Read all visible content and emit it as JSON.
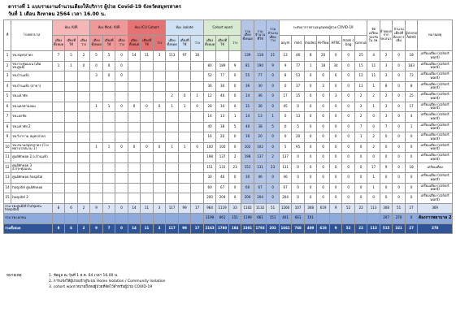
{
  "header": {
    "title": "ตารางที่ 1 แบบรายงานจำนวนเตียงให้บริการ ผู้ป่วย Covid-19 จังหวัดสมุทรสาคร",
    "date": "วันที่ 1 เดือน สิงหาคม 2564 เวลา 16.00 น."
  },
  "table": {
    "groups": [
      {
        "label": "ที่",
        "color": "#ffffff"
      },
      {
        "label": "โรงพยาบาล",
        "color": "#ffffff"
      },
      {
        "label": "ห้อง AIIR",
        "color": "#f4b6b6",
        "subs": [
          "เตียงทั้งหมด",
          "เตียงที่ใช้",
          "เตียงว่าง"
        ]
      },
      {
        "label": "ห้อง Mod. AIIR",
        "color": "#ef9a9a",
        "subs": [
          "เตียงทั้งหมด",
          "เตียงที่ใช้",
          "เตียงว่าง"
        ]
      },
      {
        "label": "ห้อง ICU Cohort",
        "color": "#e57373",
        "subs": [
          "เตียงทั้งหมด",
          "เตียงที่ใช้",
          "ว่าง"
        ]
      },
      {
        "label": "ห้อง isolate",
        "color": "#cfe2f3",
        "subs": [
          "เตียงทั้งหมด",
          "เตียงที่ใช้",
          "ว่าง"
        ]
      },
      {
        "label": "Cohort ward",
        "color": "#d9ead3",
        "subs": [
          "เตียงทั้งหมด",
          "เตียงที่ใช้",
          "ว่าง"
        ]
      },
      {
        "label": "รวมเตียงทั้งหมด",
        "color": "#b4c6e7"
      },
      {
        "label": "รวมจำนวนที่ใช้",
        "color": "#b4c6e7"
      },
      {
        "label": "รวมจำนวนเตียงว่าง",
        "color": "#b4c6e7"
      },
      {
        "label": "ระดับอาการตามอนุสมทบผู้ป่วย COVID-19",
        "color": "#ffffff",
        "subs": [
          "asym",
          "mild",
          "moderate",
          "Hi-flow",
          "HFNC",
          "mask c bag",
          "cannula"
        ]
      },
      {
        "label": "จัดเตรียมรองรับใน รพ.",
        "color": "#ffffff"
      },
      {
        "label": "ย้ายออกจาก รพ.สนาม",
        "color": "#ffffff"
      },
      {
        "label": "จำนวนเตียงที่ต้องการเพิ่ม",
        "color": "#ffffff"
      },
      {
        "label": "ผู้ป่วยรอ Admit",
        "color": "#ffffff"
      },
      {
        "label": "หมายเหตุ",
        "color": "#ffffff"
      }
    ],
    "rows": [
      {
        "no": 1,
        "name": "รพ.สมุทรสาคร",
        "cells": [
          7,
          5,
          2,
          5,
          5,
          0,
          14,
          11,
          3,
          113,
          97,
          16,
          null,
          null,
          null,
          139,
          118,
          21,
          13,
          46,
          8,
          20,
          0,
          0,
          25,
          4,
          2,
          0,
          18
        ],
        "note": "เตรียมเตียง (cohort ward)"
      },
      {
        "no": 2,
        "name": "รพ.กระทุ่มแบน (เดิม รพ.ศูนย์)",
        "cells": [
          1,
          1,
          0,
          0,
          0,
          0,
          null,
          null,
          null,
          null,
          null,
          null,
          80,
          189,
          9,
          81,
          190,
          9,
          9,
          77,
          1,
          18,
          34,
          0,
          15,
          11,
          3,
          0,
          183
        ],
        "note": "เตรียมเตียง (cohort ward)"
      },
      {
        "no": 3,
        "name": "รพ.บ้านแพ้ว",
        "cells": [
          null,
          null,
          null,
          3,
          0,
          0,
          null,
          null,
          null,
          null,
          null,
          null,
          52,
          77,
          0,
          55,
          77,
          0,
          8,
          53,
          0,
          0,
          6,
          0,
          12,
          11,
          3,
          0,
          73
        ],
        "note": "เตรียมเตียง (cohort ward)"
      },
      {
        "no": 4,
        "name": "รพ.บ้านแพ้ว (สาขา)",
        "cells": [
          null,
          null,
          null,
          null,
          null,
          null,
          null,
          null,
          null,
          null,
          null,
          null,
          36,
          30,
          0,
          36,
          30,
          0,
          0,
          37,
          0,
          2,
          0,
          0,
          11,
          1,
          8,
          0,
          8
        ],
        "note": "เตรียมเตียง (cohort ward)"
      },
      {
        "no": 5,
        "name": "รพ.มหาชัย",
        "cells": [
          null,
          null,
          null,
          null,
          null,
          null,
          null,
          null,
          null,
          2,
          0,
          1,
          12,
          46,
          0,
          14,
          46,
          0,
          17,
          15,
          0,
          0,
          3,
          0,
          2,
          2,
          2,
          0,
          25
        ],
        "note": "เตรียมเตียง (cohort ward)"
      },
      {
        "no": 6,
        "name": "รพ.นครท่าฉลอม",
        "cells": [
          null,
          null,
          null,
          1,
          1,
          0,
          0,
          0,
          0,
          1,
          1,
          0,
          28,
          34,
          0,
          31,
          36,
          0,
          45,
          0,
          0,
          0,
          0,
          0,
          2,
          1,
          3,
          0,
          17
        ],
        "note": "เตรียมเตียง (cohort ward)"
      },
      {
        "no": 7,
        "name": "รพ.เอกชัย",
        "cells": [
          null,
          null,
          null,
          null,
          null,
          null,
          null,
          null,
          null,
          null,
          null,
          null,
          14,
          13,
          1,
          14,
          13,
          1,
          0,
          13,
          0,
          0,
          0,
          0,
          2,
          0,
          3,
          0,
          4
        ],
        "note": "เตรียมเตียง (cohort ward)"
      },
      {
        "no": 8,
        "name": "รพ.มหาชัย 2",
        "cells": [
          null,
          null,
          null,
          null,
          null,
          null,
          null,
          null,
          null,
          null,
          null,
          null,
          40,
          38,
          5,
          40,
          38,
          5,
          0,
          5,
          0,
          0,
          0,
          0,
          7,
          0,
          7,
          0,
          1
        ],
        "note": "เตรียมเตียง (cohort ward)"
      },
      {
        "no": 9,
        "name": "รพ.วิภาราม สมุทรสาคร",
        "cells": [
          null,
          null,
          null,
          null,
          null,
          null,
          null,
          null,
          null,
          null,
          null,
          null,
          16,
          20,
          0,
          16,
          20,
          0,
          0,
          20,
          0,
          0,
          0,
          0,
          1,
          2,
          0,
          0,
          0
        ],
        "note": "เตรียมเตียง (cohort ward)"
      },
      {
        "no": 10,
        "name": "รพ.สนามสมุทรสาคร (โรงพยาบาลสนาม 1)",
        "cells": [
          null,
          null,
          null,
          1,
          1,
          0,
          0,
          0,
          0,
          1,
          1,
          0,
          100,
          100,
          0,
          102,
          102,
          0,
          5,
          95,
          0,
          0,
          0,
          0,
          0,
          2,
          0,
          0,
          0
        ],
        "note": "เตรียมเตียง (cohort ward)"
      },
      {
        "no": 11,
        "name": "ศูนย์พักคอย 2 อ.บ้านแพ้ว",
        "cells": [
          null,
          null,
          null,
          null,
          null,
          null,
          null,
          null,
          null,
          null,
          null,
          null,
          198,
          137,
          2,
          198,
          137,
          2,
          137,
          0,
          0,
          0,
          0,
          0,
          0,
          0,
          0,
          0,
          0
        ],
        "note": "เตรียมเตียง (cohort ward)"
      },
      {
        "no": 12,
        "name": "ศูนย์พักคอย 3 อ.กระทุ่มแบน",
        "cells": [
          null,
          null,
          null,
          null,
          null,
          null,
          null,
          null,
          null,
          null,
          null,
          null,
          151,
          131,
          23,
          151,
          131,
          23,
          131,
          0,
          0,
          0,
          0,
          0,
          0,
          17,
          9,
          0,
          18
        ],
        "note": "เตรียมเตียง"
      },
      {
        "no": 13,
        "name": "ศูนย์พักคอย hospital",
        "cells": [
          null,
          null,
          null,
          null,
          null,
          null,
          null,
          null,
          null,
          null,
          null,
          null,
          30,
          46,
          0,
          30,
          46,
          0,
          46,
          0,
          0,
          0,
          0,
          0,
          0,
          1,
          0,
          0,
          0
        ],
        "note": "เตรียมเตียง (cohort ward)"
      },
      {
        "no": 14,
        "name": "hospitel ศูนย์พักคอย",
        "cells": [
          null,
          null,
          null,
          null,
          null,
          null,
          null,
          null,
          null,
          null,
          null,
          null,
          60,
          67,
          0,
          60,
          67,
          0,
          67,
          0,
          0,
          0,
          0,
          0,
          0,
          1,
          0,
          0,
          0
        ],
        "note": "เตรียมเตียง (cohort ward)"
      },
      {
        "no": 15,
        "name": "hospitel 2",
        "cells": [
          null,
          null,
          null,
          null,
          null,
          null,
          null,
          null,
          null,
          null,
          null,
          null,
          200,
          204,
          0,
          200,
          204,
          0,
          204,
          0,
          0,
          0,
          0,
          0,
          0,
          0,
          0,
          0,
          0
        ],
        "note": "เตรียมเตียง (cohort ward)"
      }
    ],
    "totals": [
      {
        "name": "รวม รพ.ศูนย์/ทั่วไป/ชุมชน hospital)",
        "cells": [
          8,
          6,
          2,
          9,
          7,
          0,
          14,
          11,
          3,
          117,
          99,
          17,
          964,
          1119,
          33,
          1102,
          1132,
          51,
          1260,
          107,
          308,
          619,
          9,
          52,
          22,
          113,
          308,
          51,
          27,
          369
        ]
      },
      {
        "name": "รวม รพ.เอกชน",
        "cells": [
          null,
          null,
          null,
          null,
          null,
          null,
          null,
          null,
          null,
          null,
          null,
          null,
          1199,
          661,
          151,
          1199,
          661,
          151,
          401,
          661,
          101,
          null,
          null,
          null,
          null,
          null,
          207,
          270,
          0,
          9
        ]
      },
      {
        "name": "รวมทั้งหมด",
        "cells": [
          8,
          6,
          2,
          9,
          7,
          0,
          14,
          11,
          3,
          117,
          99,
          17,
          2163,
          1780,
          184,
          2301,
          1793,
          202,
          1661,
          768,
          409,
          619,
          9,
          52,
          22,
          113,
          515,
          321,
          27,
          378
        ]
      }
    ],
    "callout": "ต้องการพยาบาล 2"
  },
  "notes": {
    "label": "หมายเหตุ",
    "lines": [
      "1. ข้อมูล ณ วันที่ 1 ส.ค. 64 เวลา 16.00 น.",
      "2. การแจ้งให้ผู้ป่วยเข้าสู่ระบบ Home Isolation / Community Isolation",
      "3. cohort ward หมายถึงหอผู้ป่วยที่จัดไว้สำหรับผู้ป่วย COVID-19"
    ]
  }
}
